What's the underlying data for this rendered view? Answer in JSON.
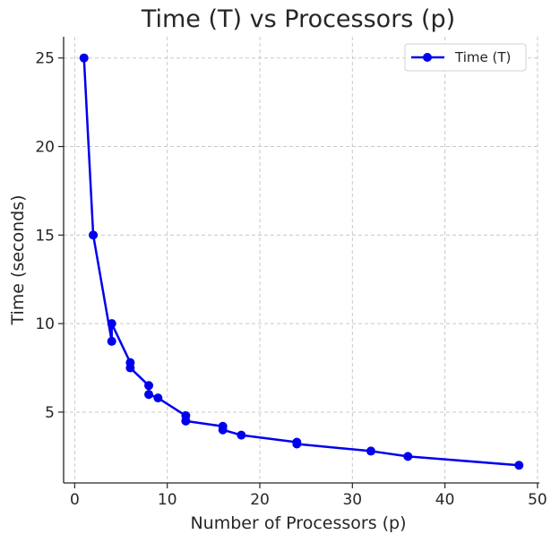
{
  "chart_data": {
    "type": "line",
    "title": "Time (T) vs Processors (p)",
    "xlabel": "Number of Processors (p)",
    "ylabel": "Time (seconds)",
    "xlim": [
      -1.2,
      50.2
    ],
    "ylim": [
      1,
      26.2
    ],
    "xticks": [
      0,
      10,
      20,
      30,
      40,
      50
    ],
    "yticks": [
      5,
      10,
      15,
      20,
      25
    ],
    "grid": true,
    "legend": "top-right",
    "series": [
      {
        "name": "Time (T)",
        "color": "#0000ee",
        "marker": "circle",
        "x": [
          1,
          2,
          4,
          4,
          6,
          6,
          8,
          8,
          9,
          12,
          12,
          16,
          16,
          18,
          24,
          24,
          32,
          36,
          48
        ],
        "y": [
          25,
          15,
          9,
          10,
          7.8,
          7.5,
          6.5,
          6,
          5.8,
          4.8,
          4.5,
          4.2,
          4,
          3.7,
          3.3,
          3.2,
          2.8,
          2.5,
          2
        ]
      }
    ]
  }
}
